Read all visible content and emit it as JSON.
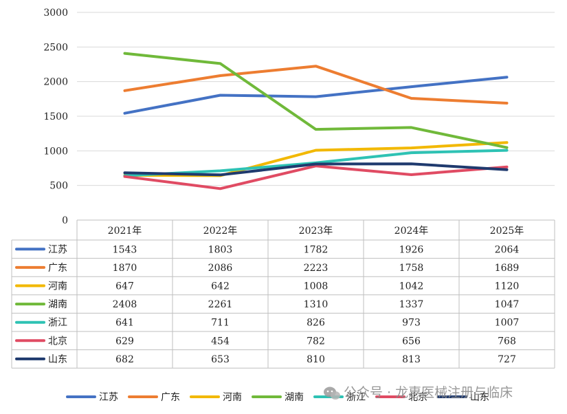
{
  "chart_data": {
    "type": "line",
    "categories": [
      "2021年",
      "2022年",
      "2023年",
      "2024年",
      "2025年"
    ],
    "ylim": [
      0,
      3000
    ],
    "yticks": [
      0,
      500,
      1000,
      1500,
      2000,
      2500,
      3000
    ],
    "grid": true,
    "legend_position": "bottom",
    "data_table": true,
    "series": [
      {
        "name": "江苏",
        "color": "#4472C4",
        "values": [
          1543,
          1803,
          1782,
          1926,
          2064
        ]
      },
      {
        "name": "广东",
        "color": "#ED7D31",
        "values": [
          1870,
          2086,
          2223,
          1758,
          1689
        ]
      },
      {
        "name": "河南",
        "color": "#F2B800",
        "values": [
          647,
          642,
          1008,
          1042,
          1120
        ]
      },
      {
        "name": "湖南",
        "color": "#70B93A",
        "values": [
          2408,
          2261,
          1310,
          1337,
          1047
        ]
      },
      {
        "name": "浙江",
        "color": "#2EC2B4",
        "values": [
          641,
          711,
          826,
          973,
          1007
        ]
      },
      {
        "name": "北京",
        "color": "#E04B63",
        "values": [
          629,
          454,
          782,
          656,
          768
        ]
      },
      {
        "name": "山东",
        "color": "#1F3A6E",
        "values": [
          682,
          653,
          810,
          813,
          727
        ]
      }
    ]
  },
  "watermark": {
    "text": "公众号 · 龙惠医械注册与临床",
    "icon": "wechat-icon"
  }
}
